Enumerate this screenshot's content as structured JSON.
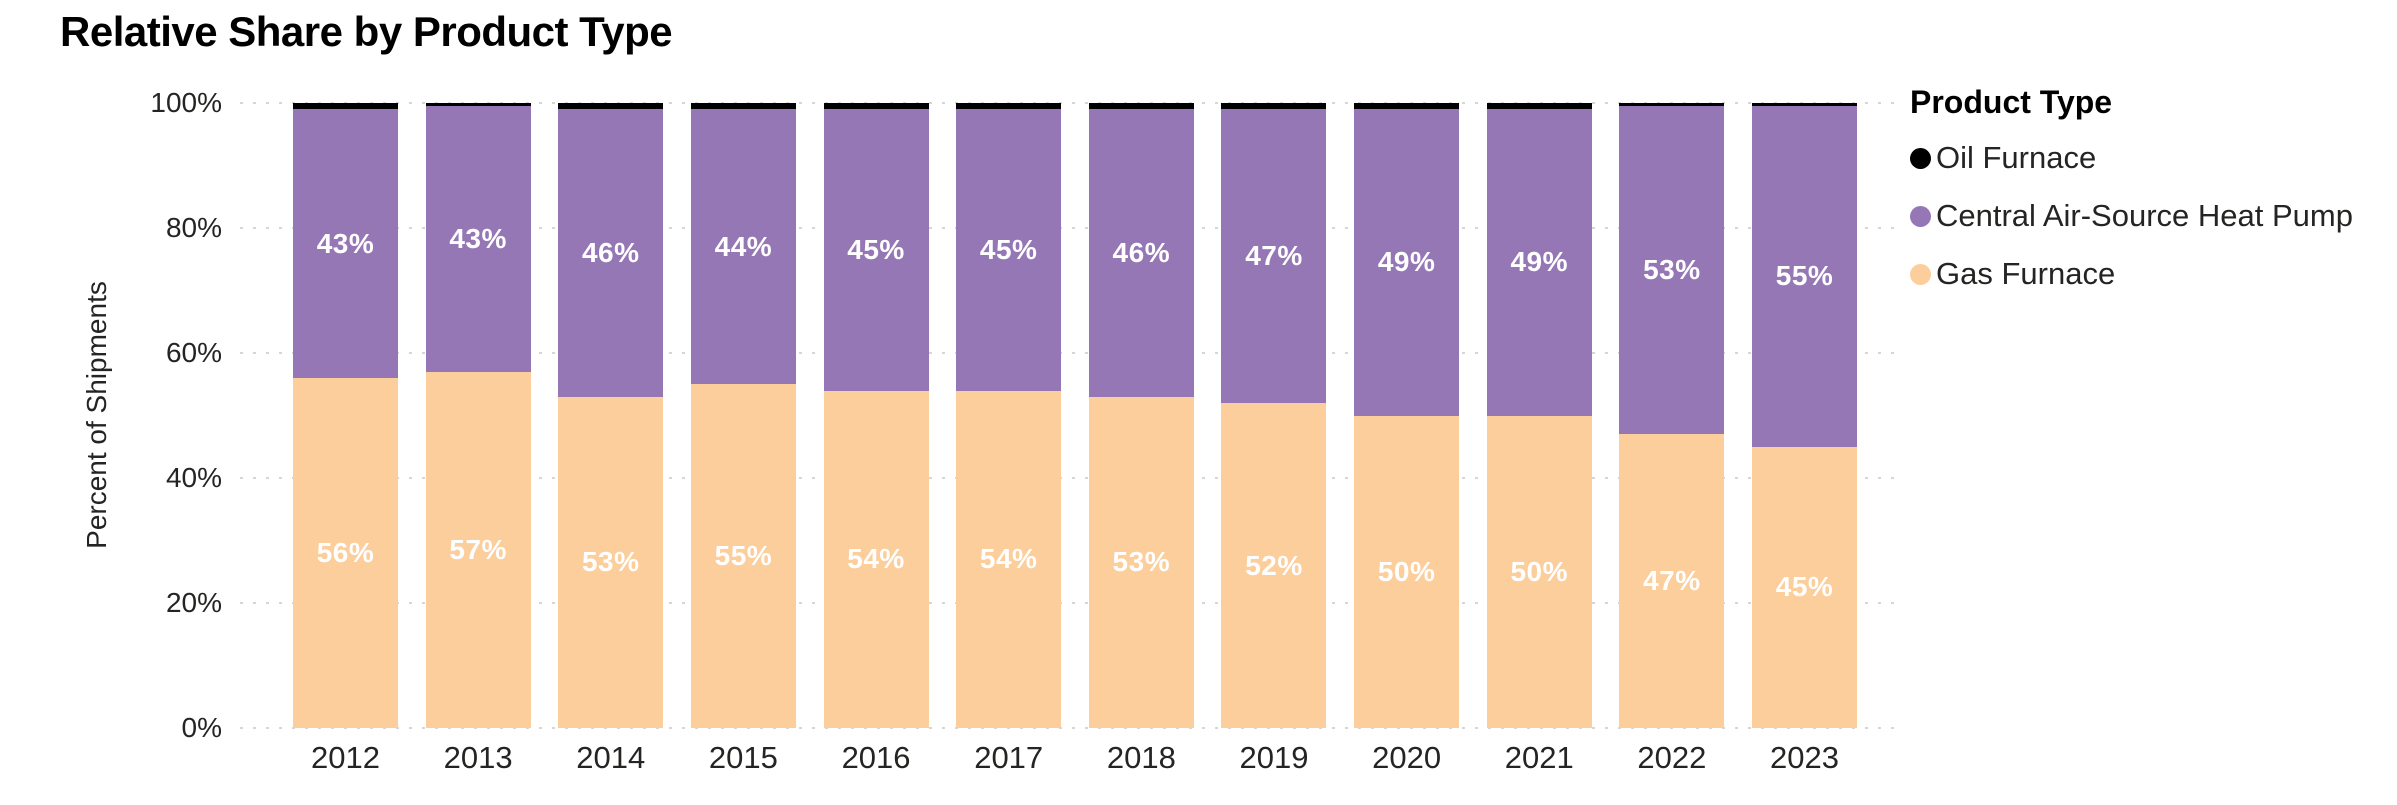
{
  "chart_data": {
    "type": "bar",
    "variant": "100%-stacked-column",
    "title": "Relative Share by Product Type",
    "xlabel": "",
    "ylabel": "Percent of Shipments",
    "categories": [
      "2012",
      "2013",
      "2014",
      "2015",
      "2016",
      "2017",
      "2018",
      "2019",
      "2020",
      "2021",
      "2022",
      "2023"
    ],
    "series": [
      {
        "name": "Oil Furnace",
        "color": "#000000",
        "values": [
          1,
          0,
          1,
          1,
          1,
          1,
          1,
          1,
          1,
          1,
          0,
          0
        ],
        "labels_shown": false
      },
      {
        "name": "Central Air-Source Heat Pump",
        "color": "#9577B6",
        "values": [
          43,
          43,
          46,
          44,
          45,
          45,
          46,
          47,
          49,
          49,
          53,
          55
        ],
        "labels": [
          "43%",
          "43%",
          "46%",
          "44%",
          "45%",
          "45%",
          "46%",
          "47%",
          "49%",
          "49%",
          "53%",
          "55%"
        ],
        "labels_shown": true
      },
      {
        "name": "Gas Furnace",
        "color": "#FBCE9C",
        "values": [
          56,
          57,
          53,
          55,
          54,
          54,
          53,
          52,
          50,
          50,
          47,
          45
        ],
        "labels": [
          "56%",
          "57%",
          "53%",
          "55%",
          "54%",
          "54%",
          "53%",
          "52%",
          "50%",
          "50%",
          "47%",
          "45%"
        ],
        "labels_shown": true
      }
    ],
    "stack_order_bottom_to_top": [
      "Gas Furnace",
      "Central Air-Source Heat Pump",
      "Oil Furnace"
    ],
    "ylim": [
      0,
      100
    ],
    "yticks": [
      {
        "value": 0,
        "label": "0%"
      },
      {
        "value": 20,
        "label": "20%"
      },
      {
        "value": 40,
        "label": "40%"
      },
      {
        "value": 60,
        "label": "60%"
      },
      {
        "value": 80,
        "label": "80%"
      },
      {
        "value": 100,
        "label": "100%"
      }
    ],
    "grid": {
      "orientation": "horizontal",
      "style": "dotted",
      "color": "#D6D6D6"
    },
    "legend": {
      "title": "Product Type",
      "position": "right",
      "items": [
        "Oil Furnace",
        "Central Air-Source Heat Pump",
        "Gas Furnace"
      ]
    },
    "data_label_color": "#FFFFFF",
    "axis_text_color": "#252423"
  }
}
